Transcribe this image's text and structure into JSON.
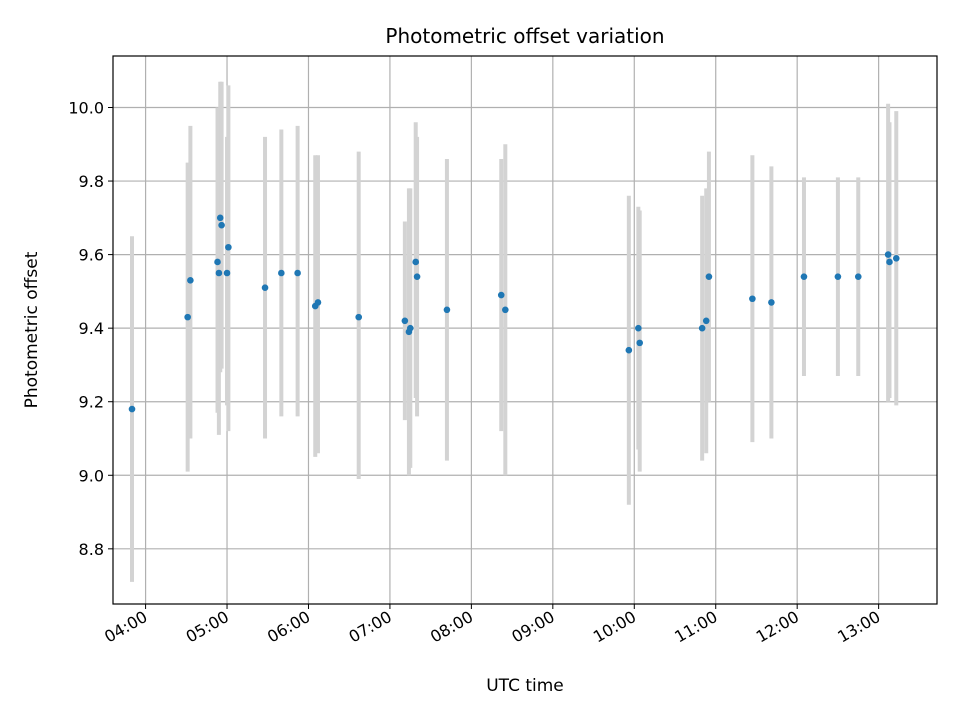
{
  "chart_data": {
    "type": "scatter",
    "title": "Photometric offset variation",
    "xlabel": "UTC time",
    "ylabel": "Photometric offset",
    "grid": true,
    "x_tick_labels": [
      "04:00",
      "05:00",
      "06:00",
      "07:00",
      "08:00",
      "09:00",
      "10:00",
      "11:00",
      "12:00",
      "13:00"
    ],
    "y_tick_labels": [
      "8.8",
      "9.0",
      "9.2",
      "9.4",
      "9.6",
      "9.8",
      "10.0"
    ],
    "y_ticks": [
      8.8,
      9.0,
      9.2,
      9.4,
      9.6,
      9.8,
      10.0
    ],
    "xlim": [
      "03:36",
      "13:43"
    ],
    "ylim": [
      8.65,
      10.14
    ],
    "point_color": "#1f77b4",
    "errorbar_color": "#d3d3d3",
    "points": [
      {
        "x": "03:50",
        "y": 9.18,
        "low": 8.71,
        "high": 9.65
      },
      {
        "x": "04:31",
        "y": 9.43,
        "low": 9.01,
        "high": 9.85
      },
      {
        "x": "04:33",
        "y": 9.53,
        "low": 9.1,
        "high": 9.95
      },
      {
        "x": "04:53",
        "y": 9.58,
        "low": 9.17,
        "high": 10.0
      },
      {
        "x": "04:54",
        "y": 9.55,
        "low": 9.11,
        "high": 9.99
      },
      {
        "x": "04:55",
        "y": 9.7,
        "low": 9.28,
        "high": 10.07
      },
      {
        "x": "04:56",
        "y": 9.68,
        "low": 9.29,
        "high": 10.07
      },
      {
        "x": "05:00",
        "y": 9.55,
        "low": 9.19,
        "high": 9.92
      },
      {
        "x": "05:01",
        "y": 9.62,
        "low": 9.12,
        "high": 10.06
      },
      {
        "x": "05:28",
        "y": 9.51,
        "low": 9.1,
        "high": 9.92
      },
      {
        "x": "05:40",
        "y": 9.55,
        "low": 9.16,
        "high": 9.94
      },
      {
        "x": "05:52",
        "y": 9.55,
        "low": 9.16,
        "high": 9.95
      },
      {
        "x": "06:05",
        "y": 9.46,
        "low": 9.05,
        "high": 9.87
      },
      {
        "x": "06:07",
        "y": 9.47,
        "low": 9.06,
        "high": 9.87
      },
      {
        "x": "06:37",
        "y": 9.43,
        "low": 8.99,
        "high": 9.88
      },
      {
        "x": "07:11",
        "y": 9.42,
        "low": 9.15,
        "high": 9.69
      },
      {
        "x": "07:14",
        "y": 9.39,
        "low": 9.0,
        "high": 9.78
      },
      {
        "x": "07:15",
        "y": 9.4,
        "low": 9.02,
        "high": 9.78
      },
      {
        "x": "07:19",
        "y": 9.58,
        "low": 9.21,
        "high": 9.96
      },
      {
        "x": "07:20",
        "y": 9.54,
        "low": 9.16,
        "high": 9.92
      },
      {
        "x": "07:42",
        "y": 9.45,
        "low": 9.04,
        "high": 9.86
      },
      {
        "x": "08:22",
        "y": 9.49,
        "low": 9.12,
        "high": 9.86
      },
      {
        "x": "08:25",
        "y": 9.45,
        "low": 9.0,
        "high": 9.9
      },
      {
        "x": "09:56",
        "y": 9.34,
        "low": 8.92,
        "high": 9.76
      },
      {
        "x": "10:03",
        "y": 9.4,
        "low": 9.07,
        "high": 9.73
      },
      {
        "x": "10:04",
        "y": 9.36,
        "low": 9.01,
        "high": 9.72
      },
      {
        "x": "10:50",
        "y": 9.4,
        "low": 9.04,
        "high": 9.76
      },
      {
        "x": "10:53",
        "y": 9.42,
        "low": 9.06,
        "high": 9.78
      },
      {
        "x": "10:55",
        "y": 9.54,
        "low": 9.2,
        "high": 9.88
      },
      {
        "x": "11:27",
        "y": 9.48,
        "low": 9.09,
        "high": 9.87
      },
      {
        "x": "11:41",
        "y": 9.47,
        "low": 9.1,
        "high": 9.84
      },
      {
        "x": "12:05",
        "y": 9.54,
        "low": 9.27,
        "high": 9.81
      },
      {
        "x": "12:30",
        "y": 9.54,
        "low": 9.27,
        "high": 9.81
      },
      {
        "x": "12:45",
        "y": 9.54,
        "low": 9.27,
        "high": 9.81
      },
      {
        "x": "13:07",
        "y": 9.6,
        "low": 9.2,
        "high": 10.01
      },
      {
        "x": "13:08",
        "y": 9.58,
        "low": 9.21,
        "high": 9.96
      },
      {
        "x": "13:13",
        "y": 9.59,
        "low": 9.19,
        "high": 9.99
      }
    ]
  }
}
